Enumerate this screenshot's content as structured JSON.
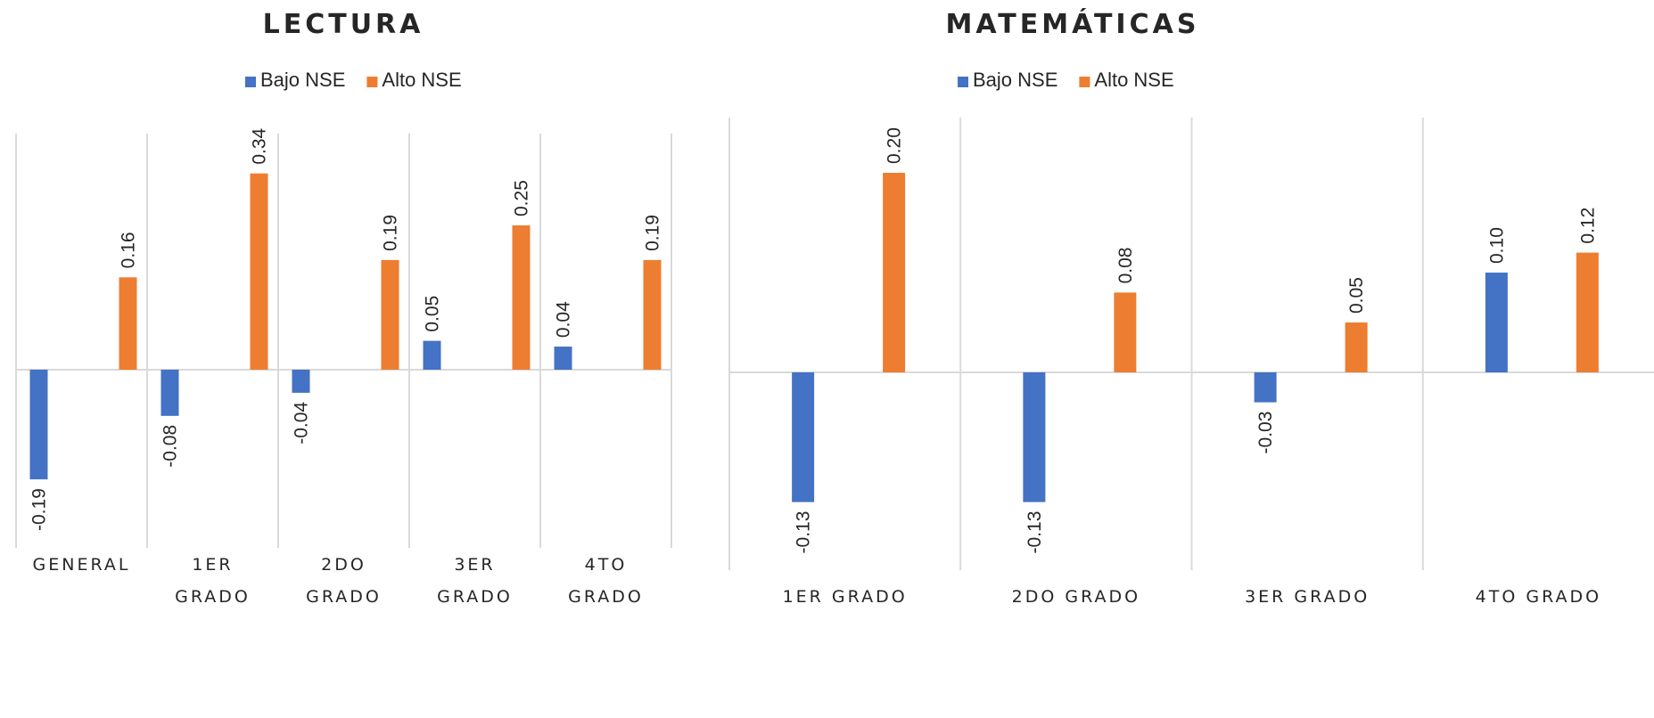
{
  "chart_data": [
    {
      "type": "bar",
      "title": "LECTURA",
      "categories": [
        [
          "GENERAL"
        ],
        [
          "1ER",
          "GRADO"
        ],
        [
          "2DO",
          "GRADO"
        ],
        [
          "3ER",
          "GRADO"
        ],
        [
          "4TO",
          "GRADO"
        ]
      ],
      "series": [
        {
          "name": "Bajo NSE",
          "color": "#4472c4",
          "values": [
            -0.19,
            -0.08,
            -0.04,
            0.05,
            0.04
          ],
          "labels": [
            "-0.19",
            "-0.08",
            "-0.04",
            "0.05",
            "0.04"
          ]
        },
        {
          "name": "Alto NSE",
          "color": "#ed7d31",
          "values": [
            0.16,
            0.34,
            0.19,
            0.25,
            0.19
          ],
          "labels": [
            "0.16",
            "0.34",
            "0.19",
            "0.25",
            "0.19"
          ]
        }
      ],
      "legend": "top",
      "grid": false
    },
    {
      "type": "bar",
      "title": "MATEMÁTICAS",
      "categories": [
        [
          "1ER GRADO"
        ],
        [
          "2DO GRADO"
        ],
        [
          "3ER GRADO"
        ],
        [
          "4TO GRADO"
        ]
      ],
      "series": [
        {
          "name": "Bajo NSE",
          "color": "#4472c4",
          "values": [
            -0.13,
            -0.13,
            -0.03,
            0.1
          ],
          "labels": [
            "-0.13",
            "-0.13",
            "-0.03",
            "0.10"
          ]
        },
        {
          "name": "Alto NSE",
          "color": "#ed7d31",
          "values": [
            0.2,
            0.08,
            0.05,
            0.12
          ],
          "labels": [
            "0.20",
            "0.08",
            "0.05",
            "0.12"
          ]
        }
      ],
      "legend": "top",
      "grid": false
    }
  ]
}
